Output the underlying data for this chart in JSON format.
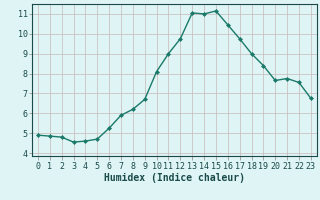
{
  "x": [
    0,
    1,
    2,
    3,
    4,
    5,
    6,
    7,
    8,
    9,
    10,
    11,
    12,
    13,
    14,
    15,
    16,
    17,
    18,
    19,
    20,
    21,
    22,
    23
  ],
  "y": [
    4.9,
    4.85,
    4.8,
    4.55,
    4.6,
    4.7,
    5.25,
    5.9,
    6.2,
    6.7,
    8.1,
    9.0,
    9.75,
    11.05,
    11.0,
    11.15,
    10.45,
    9.75,
    9.0,
    8.4,
    7.65,
    7.75,
    7.55,
    6.75
  ],
  "line_color": "#1a7a6a",
  "marker": "D",
  "marker_size": 2,
  "bg_color": "#dff4f4",
  "grid_color_major": "#c8b8b8",
  "grid_color_minor": "#ddd0d0",
  "xlabel": "Humidex (Indice chaleur)",
  "xlim": [
    -0.5,
    23.5
  ],
  "ylim": [
    3.85,
    11.5
  ],
  "yticks": [
    4,
    5,
    6,
    7,
    8,
    9,
    10,
    11
  ],
  "xticks": [
    0,
    1,
    2,
    3,
    4,
    5,
    6,
    7,
    8,
    9,
    10,
    11,
    12,
    13,
    14,
    15,
    16,
    17,
    18,
    19,
    20,
    21,
    22,
    23
  ],
  "xlabel_fontsize": 7,
  "tick_fontsize": 6,
  "line_width": 1.0
}
